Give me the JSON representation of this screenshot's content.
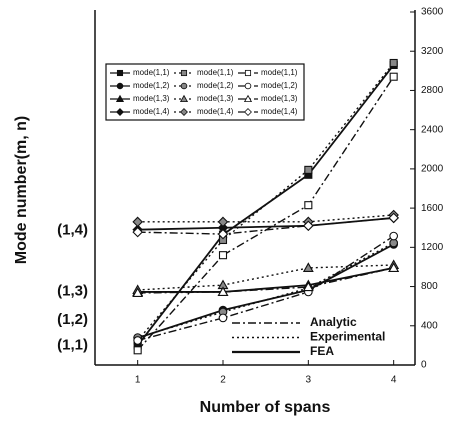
{
  "chart_data": {
    "type": "line",
    "xlabel": "Number of spans",
    "ylabel": "Mode number(m, n)",
    "x": [
      1,
      2,
      3,
      4
    ],
    "xlim": [
      0.5,
      4.25
    ],
    "xticks": [
      1,
      2,
      3,
      4
    ],
    "y2lim": [
      0,
      3600
    ],
    "y2ticks": [
      0,
      400,
      800,
      1200,
      1600,
      2000,
      2400,
      2800,
      3200,
      3600
    ],
    "annotations": [
      {
        "text": "(1,1)",
        "y": 200
      },
      {
        "text": "(1,2)",
        "y": 460
      },
      {
        "text": "(1,3)",
        "y": 750
      },
      {
        "text": "(1,4)",
        "y": 1370
      }
    ],
    "methods": [
      {
        "name": "Analytic",
        "dash": "dashdot"
      },
      {
        "name": "Experimental",
        "dash": "dotted"
      },
      {
        "name": "FEA",
        "dash": "solid"
      }
    ],
    "series": [
      {
        "name": "mode(1,1)",
        "color": "#111",
        "dash": "solid",
        "marker": "square",
        "fill": "filled",
        "axis": "y2",
        "values": [
          200,
          1330,
          1940,
          3060
        ]
      },
      {
        "name": "mode(1,2)",
        "color": "#111",
        "dash": "solid",
        "marker": "circle",
        "fill": "filled",
        "axis": "y2",
        "values": [
          275,
          560,
          765,
          1230
        ]
      },
      {
        "name": "mode(1,3)",
        "color": "#111",
        "dash": "solid",
        "marker": "triangle",
        "fill": "filled",
        "axis": "y2",
        "values": [
          745,
          745,
          815,
          990
        ]
      },
      {
        "name": "mode(1,4)",
        "color": "#111",
        "dash": "solid",
        "marker": "diamond",
        "fill": "filled",
        "axis": "y2",
        "values": [
          1380,
          1400,
          1420,
          1500
        ]
      },
      {
        "name": "mode(1,1)",
        "color": "#111",
        "dash": "dotted",
        "marker": "square",
        "fill": "half",
        "axis": "y2",
        "values": [
          250,
          1275,
          1990,
          3080
        ]
      },
      {
        "name": "mode(1,2)",
        "color": "#111",
        "dash": "dotted",
        "marker": "circle",
        "fill": "half",
        "axis": "y2",
        "values": [
          280,
          540,
          785,
          1245
        ]
      },
      {
        "name": "mode(1,3)",
        "color": "#111",
        "dash": "dotted",
        "marker": "triangle",
        "fill": "half",
        "axis": "y2",
        "values": [
          765,
          815,
          990,
          1020
        ]
      },
      {
        "name": "mode(1,4)",
        "color": "#111",
        "dash": "dotted",
        "marker": "diamond",
        "fill": "half",
        "axis": "y2",
        "values": [
          1460,
          1460,
          1460,
          1530
        ]
      },
      {
        "name": "mode(1,1)",
        "color": "#111",
        "dash": "dashdot",
        "marker": "square",
        "fill": "open",
        "axis": "y2",
        "values": [
          150,
          1120,
          1630,
          2940
        ]
      },
      {
        "name": "mode(1,2)",
        "color": "#111",
        "dash": "dashdot",
        "marker": "circle",
        "fill": "open",
        "axis": "y2",
        "values": [
          250,
          480,
          745,
          1315
        ]
      },
      {
        "name": "mode(1,3)",
        "color": "#111",
        "dash": "dashdot",
        "marker": "triangle",
        "fill": "open",
        "axis": "y2",
        "values": [
          735,
          745,
          795,
          990
        ]
      },
      {
        "name": "mode(1,4)",
        "color": "#111",
        "dash": "dashdot",
        "marker": "diamond",
        "fill": "open",
        "axis": "y2",
        "values": [
          1355,
          1335,
          1420,
          1500
        ]
      }
    ]
  }
}
